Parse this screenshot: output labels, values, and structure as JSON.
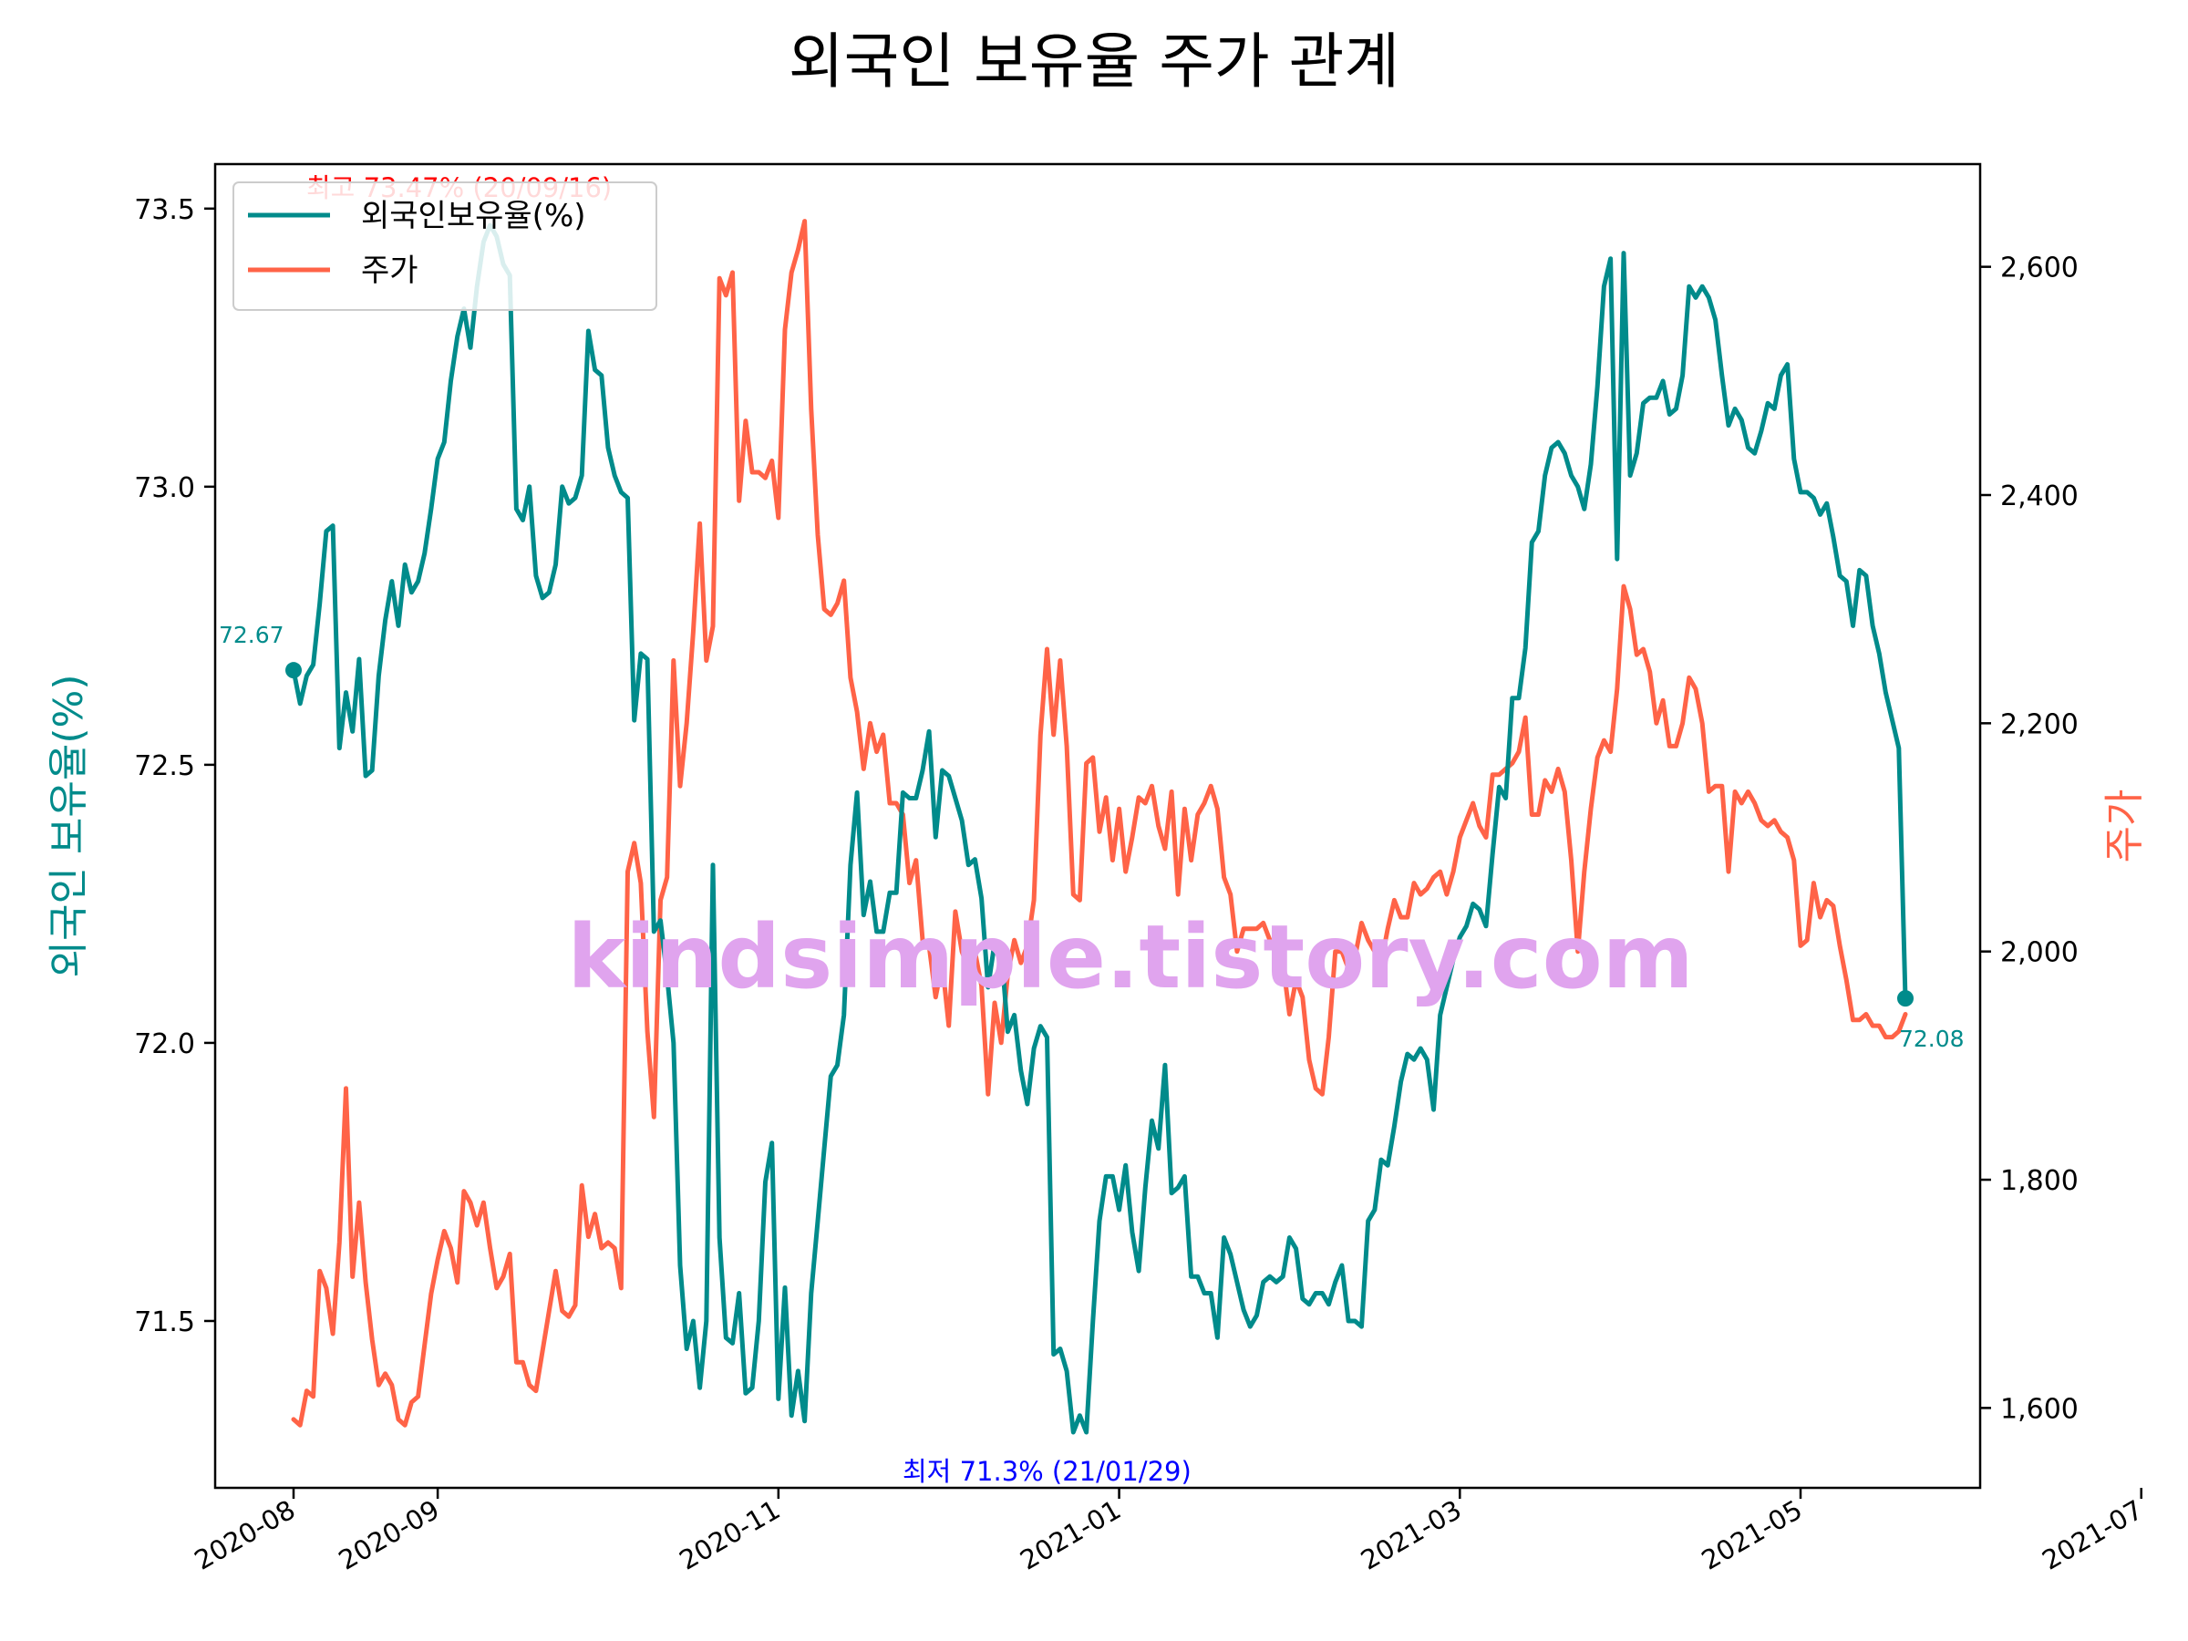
{
  "chart_data": {
    "type": "line",
    "title": "외국인 보유율 주가 관계",
    "y_left_label": "외국인 보유율(%)",
    "y_right_label": "주가",
    "x_ticks": [
      "2020-08",
      "2020-09",
      "2020-11",
      "2021-01",
      "2021-03",
      "2021-05",
      "2021-07"
    ],
    "y_left_ticks": [
      "71.5",
      "72.0",
      "72.5",
      "73.0",
      "73.5"
    ],
    "y_right_ticks": [
      "1,600",
      "1,800",
      "2,000",
      "2,200",
      "2,400",
      "2,600"
    ],
    "y_left_range": [
      71.2,
      73.58
    ],
    "y_right_range": [
      1530,
      2690
    ],
    "legend": {
      "position": "top-left",
      "items": [
        "외국인보유율(%)",
        "주가"
      ]
    },
    "colors": {
      "holding": "#008b8b",
      "price": "#ff6347",
      "max_annotation": "#ff0000",
      "min_annotation": "#0000ff",
      "watermark": "#e0a4ee"
    },
    "annotations": {
      "max": "최고 73.47% (20/09/16)",
      "min": "최저 71.3% (21/01/29)",
      "start": "72.67",
      "end": "72.08"
    },
    "watermark": "kindsimple.tistory.com",
    "series": [
      {
        "name": "외국인보유율(%)",
        "axis": "left",
        "values": [
          72.67,
          72.61,
          72.66,
          72.68,
          72.79,
          72.92,
          72.93,
          72.53,
          72.63,
          72.56,
          72.69,
          72.48,
          72.49,
          72.66,
          72.76,
          72.83,
          72.75,
          72.86,
          72.81,
          72.83,
          72.88,
          72.96,
          73.05,
          73.08,
          73.19,
          73.27,
          73.32,
          73.25,
          73.36,
          73.44,
          73.47,
          73.45,
          73.4,
          73.38,
          72.96,
          72.94,
          73.0,
          72.84,
          72.8,
          72.81,
          72.86,
          73.0,
          72.97,
          72.98,
          73.02,
          73.28,
          73.21,
          73.2,
          73.07,
          73.02,
          72.99,
          72.98,
          72.58,
          72.7,
          72.69,
          72.2,
          72.22,
          72.12,
          72.0,
          71.6,
          71.45,
          71.5,
          71.38,
          71.5,
          72.32,
          71.65,
          71.47,
          71.46,
          71.55,
          71.37,
          71.38,
          71.5,
          71.75,
          71.82,
          71.36,
          71.56,
          71.33,
          71.41,
          71.32,
          71.55,
          71.68,
          71.81,
          71.94,
          71.96,
          72.05,
          72.32,
          72.45,
          72.23,
          72.29,
          72.2,
          72.2,
          72.27,
          72.27,
          72.45,
          72.44,
          72.44,
          72.49,
          72.56,
          72.37,
          72.49,
          72.48,
          72.44,
          72.4,
          72.32,
          72.33,
          72.26,
          72.1,
          72.18,
          72.17,
          72.02,
          72.05,
          71.95,
          71.89,
          71.99,
          72.03,
          72.01,
          71.44,
          71.45,
          71.41,
          71.3,
          71.33,
          71.3,
          71.5,
          71.68,
          71.76,
          71.76,
          71.7,
          71.78,
          71.66,
          71.59,
          71.74,
          71.86,
          71.81,
          71.96,
          71.73,
          71.74,
          71.76,
          71.58,
          71.58,
          71.55,
          71.55,
          71.47,
          71.65,
          71.62,
          71.57,
          71.52,
          71.49,
          71.51,
          71.57,
          71.58,
          71.57,
          71.58,
          71.65,
          71.63,
          71.54,
          71.53,
          71.55,
          71.55,
          71.53,
          71.57,
          71.6,
          71.5,
          71.5,
          71.49,
          71.68,
          71.7,
          71.79,
          71.78,
          71.85,
          71.93,
          71.98,
          71.97,
          71.99,
          71.97,
          71.88,
          72.05,
          72.1,
          72.15,
          72.19,
          72.21,
          72.25,
          72.24,
          72.21,
          72.34,
          72.46,
          72.44,
          72.62,
          72.62,
          72.71,
          72.9,
          72.92,
          73.02,
          73.07,
          73.08,
          73.06,
          73.02,
          73.0,
          72.96,
          73.04,
          73.18,
          73.36,
          73.41,
          72.87,
          73.42,
          73.02,
          73.06,
          73.15,
          73.16,
          73.16,
          73.19,
          73.13,
          73.14,
          73.2,
          73.36,
          73.34,
          73.36,
          73.34,
          73.3,
          73.2,
          73.11,
          73.14,
          73.12,
          73.07,
          73.06,
          73.1,
          73.15,
          73.14,
          73.2,
          73.22,
          73.05,
          72.99,
          72.99,
          72.98,
          72.95,
          72.97,
          72.91,
          72.84,
          72.83,
          72.75,
          72.85,
          72.84,
          72.75,
          72.7,
          72.63,
          72.58,
          72.53,
          72.08
        ]
      },
      {
        "name": "주가",
        "axis": "right",
        "values": [
          1590,
          1585,
          1615,
          1610,
          1720,
          1705,
          1665,
          1745,
          1880,
          1715,
          1780,
          1710,
          1660,
          1620,
          1630,
          1620,
          1590,
          1585,
          1605,
          1610,
          1655,
          1700,
          1730,
          1755,
          1740,
          1710,
          1790,
          1780,
          1760,
          1780,
          1740,
          1705,
          1715,
          1735,
          1640,
          1640,
          1620,
          1615,
          1650,
          1685,
          1720,
          1685,
          1680,
          1690,
          1795,
          1750,
          1770,
          1740,
          1745,
          1740,
          1705,
          2070,
          2095,
          2060,
          1930,
          1855,
          2045,
          2065,
          2255,
          2145,
          2200,
          2280,
          2375,
          2255,
          2285,
          2590,
          2575,
          2595,
          2395,
          2465,
          2420,
          2420,
          2415,
          2430,
          2380,
          2545,
          2595,
          2615,
          2640,
          2475,
          2365,
          2300,
          2295,
          2305,
          2325,
          2240,
          2210,
          2160,
          2200,
          2175,
          2190,
          2130,
          2130,
          2120,
          2060,
          2080,
          2010,
          2005,
          1960,
          1990,
          1935,
          2035,
          2000,
          1985,
          2000,
          1970,
          1875,
          1955,
          1920,
          1980,
          2010,
          1990,
          2005,
          2045,
          2190,
          2265,
          2190,
          2255,
          2180,
          2050,
          2045,
          2165,
          2170,
          2105,
          2135,
          2080,
          2125,
          2070,
          2100,
          2135,
          2130,
          2145,
          2110,
          2090,
          2140,
          2050,
          2125,
          2080,
          2120,
          2130,
          2145,
          2125,
          2065,
          2050,
          2000,
          2020,
          2020,
          2020,
          2025,
          2010,
          2000,
          1990,
          1945,
          1975,
          1960,
          1905,
          1880,
          1875,
          1925,
          2000,
          2000,
          1985,
          1995,
          2025,
          2010,
          2000,
          1990,
          2020,
          2045,
          2030,
          2030,
          2060,
          2050,
          2055,
          2065,
          2070,
          2050,
          2070,
          2100,
          2115,
          2130,
          2110,
          2100,
          2155,
          2155,
          2160,
          2165,
          2175,
          2205,
          2120,
          2120,
          2150,
          2140,
          2160,
          2140,
          2080,
          2000,
          2070,
          2125,
          2170,
          2185,
          2175,
          2230,
          2320,
          2300,
          2260,
          2265,
          2245,
          2200,
          2220,
          2180,
          2180,
          2200,
          2240,
          2230,
          2200,
          2140,
          2145,
          2145,
          2070,
          2140,
          2130,
          2140,
          2130,
          2115,
          2110,
          2115,
          2105,
          2100,
          2080,
          2005,
          2010,
          2060,
          2030,
          2045,
          2040,
          2005,
          1975,
          1940,
          1940,
          1945,
          1935,
          1935,
          1925,
          1925,
          1930,
          1945
        ]
      }
    ]
  }
}
